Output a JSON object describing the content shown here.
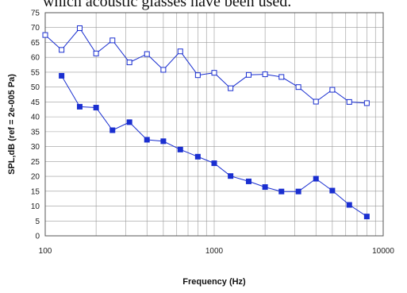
{
  "top_text": "which acoustic glasses have been used.",
  "chart_data": {
    "type": "line",
    "xlabel": "Frequency (Hz)",
    "ylabel": "SPL,dB (ref = 2e-005 Pa)",
    "x_scale": "log",
    "xlim": [
      100,
      10000
    ],
    "ylim": [
      0,
      75
    ],
    "x_ticks": [
      100,
      1000,
      10000
    ],
    "y_ticks": [
      0,
      5,
      10,
      15,
      20,
      25,
      30,
      35,
      40,
      45,
      50,
      55,
      60,
      65,
      70,
      75
    ],
    "grid": true,
    "colors": {
      "series": "#1a2fd0",
      "grid": "#9a9a9a",
      "frame": "#555555"
    },
    "series": [
      {
        "marker": "open-square",
        "x": [
          100,
          125,
          160,
          200,
          250,
          315,
          400,
          500,
          630,
          800,
          1000,
          1250,
          1600,
          2000,
          2500,
          3150,
          4000,
          5000,
          6300,
          8000
        ],
        "y": [
          67.5,
          62.5,
          69.8,
          61.3,
          65.7,
          58.3,
          61.1,
          55.8,
          62.0,
          54.0,
          54.8,
          49.6,
          54.1,
          54.3,
          53.4,
          50.0,
          45.1,
          49.1,
          45.0,
          44.6
        ]
      },
      {
        "marker": "filled-square",
        "x": [
          125,
          160,
          200,
          250,
          315,
          400,
          500,
          630,
          800,
          1000,
          1250,
          1600,
          2000,
          2500,
          3150,
          4000,
          5000,
          6300,
          8000
        ],
        "y": [
          53.8,
          43.4,
          43.1,
          35.5,
          38.2,
          32.3,
          31.8,
          29.0,
          26.6,
          24.4,
          20.1,
          18.3,
          16.4,
          14.9,
          14.9,
          19.2,
          15.2,
          10.4,
          6.5
        ]
      }
    ]
  }
}
